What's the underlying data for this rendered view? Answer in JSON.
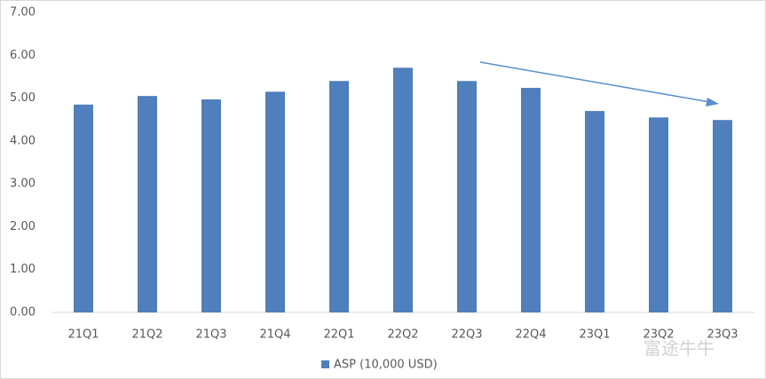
{
  "chart_data": {
    "type": "bar",
    "categories": [
      "21Q1",
      "21Q2",
      "21Q3",
      "21Q4",
      "22Q1",
      "22Q2",
      "22Q3",
      "22Q4",
      "23Q1",
      "23Q2",
      "23Q3"
    ],
    "series": [
      {
        "name": "ASP (10,000 USD)",
        "color": "#4f7fbc",
        "values": [
          4.85,
          5.05,
          4.97,
          5.15,
          5.4,
          5.71,
          5.4,
          5.24,
          4.7,
          4.55,
          4.49
        ]
      }
    ],
    "ylim": [
      0,
      7
    ],
    "yticks": [
      {
        "value": 0,
        "label": "0.00"
      },
      {
        "value": 1,
        "label": "1.00"
      },
      {
        "value": 2,
        "label": "2.00"
      },
      {
        "value": 3,
        "label": "3.00"
      },
      {
        "value": 4,
        "label": "4.00"
      },
      {
        "value": 5,
        "label": "5.00"
      },
      {
        "value": 6,
        "label": "6.00"
      },
      {
        "value": 7,
        "label": "7.00"
      }
    ],
    "grid": false,
    "legend": "bottom",
    "watermark": "富途牛牛"
  }
}
